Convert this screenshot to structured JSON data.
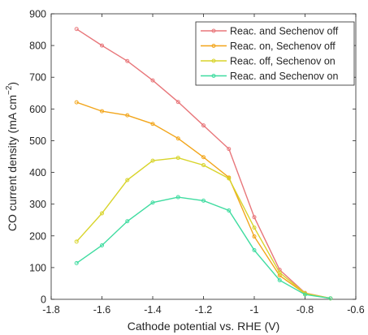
{
  "chart_data": {
    "type": "line",
    "title": "",
    "xlabel": "Cathode potential vs. RHE (V)",
    "ylabel_parts": {
      "main": "CO current density (mA cm",
      "sup": "−2",
      "close": ")"
    },
    "xlim": [
      -1.8,
      -0.6
    ],
    "ylim": [
      0,
      900
    ],
    "xticks": [
      -1.8,
      -1.6,
      -1.4,
      -1.2,
      -1.0,
      -0.8,
      -0.6
    ],
    "xtick_labels": [
      "-1.8",
      "-1.6",
      "-1.4",
      "-1.2",
      "-1",
      "-0.8",
      "-0.6"
    ],
    "yticks": [
      0,
      100,
      200,
      300,
      400,
      500,
      600,
      700,
      800,
      900
    ],
    "ytick_labels": [
      "0",
      "100",
      "200",
      "300",
      "400",
      "500",
      "600",
      "700",
      "800",
      "900"
    ],
    "grid": false,
    "legend_position": "top-right",
    "x": [
      -1.7,
      -1.6,
      -1.5,
      -1.4,
      -1.3,
      -1.2,
      -1.1,
      -1.0,
      -0.9,
      -0.8,
      -0.7
    ],
    "series": [
      {
        "name": "Reac. and Sechenov off",
        "color": "#e8767a",
        "values": [
          852,
          800,
          751,
          690,
          622,
          548,
          474,
          259,
          93,
          20,
          3
        ]
      },
      {
        "name": "Reac. on, Sechenov off",
        "color": "#f2a51a",
        "values": [
          621,
          593,
          580,
          553,
          507,
          448,
          384,
          198,
          75,
          18,
          3
        ]
      },
      {
        "name": "Reac. off, Sechenov on",
        "color": "#d8d42a",
        "values": [
          182,
          271,
          376,
          437,
          446,
          423,
          381,
          226,
          84,
          19,
          3
        ]
      },
      {
        "name": "Reac. and Sechenov on",
        "color": "#3fdca0",
        "values": [
          114,
          170,
          246,
          305,
          322,
          311,
          280,
          155,
          60,
          15,
          3
        ]
      }
    ]
  }
}
